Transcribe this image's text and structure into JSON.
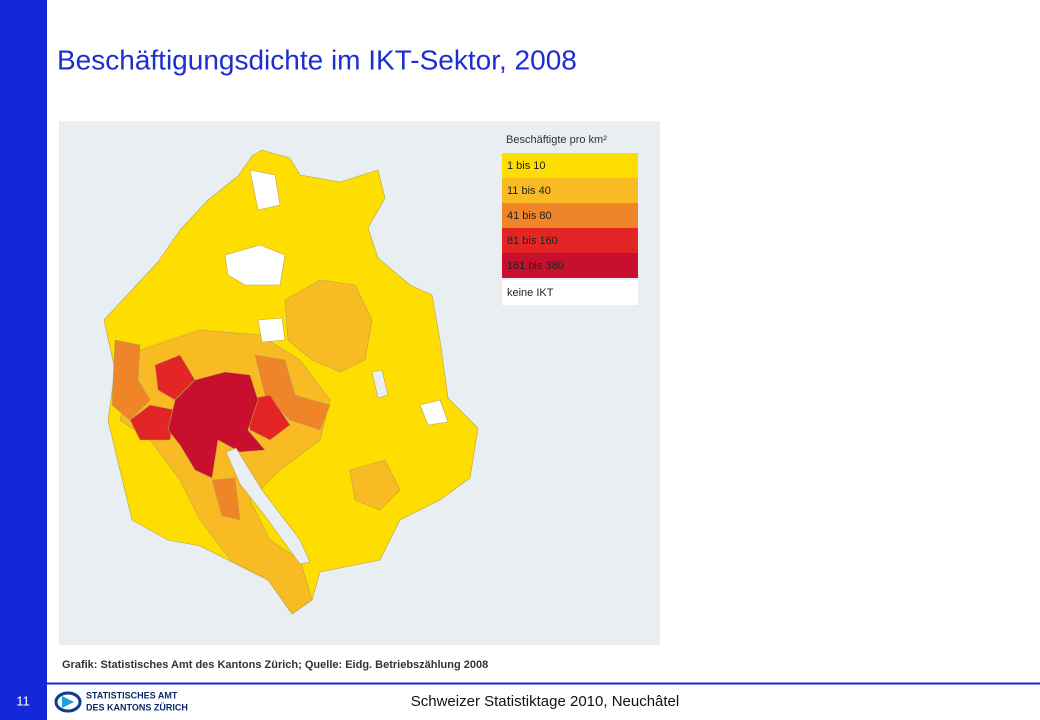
{
  "header": {
    "title": "Beschäftigungsdichte im IKT-Sektor, 2008"
  },
  "legend": {
    "title": "Beschäftigte pro km²",
    "items": [
      {
        "label": "1 bis 10",
        "color": "#fede00"
      },
      {
        "label": "11 bis 40",
        "color": "#f9bb23"
      },
      {
        "label": "41 bis 80",
        "color": "#f08428"
      },
      {
        "label": "81 bis 160",
        "color": "#e42525"
      },
      {
        "label": "161 bis 380",
        "color": "#c8102e"
      },
      {
        "label": "keine IKT",
        "color": "#ffffff"
      }
    ]
  },
  "source": "Grafik: Statistisches Amt des Kantons Zürich; Quelle: Eidg. Betriebszählung 2008",
  "footer": {
    "page": "11",
    "logo_line1": "STATISTISCHES AMT",
    "logo_line2": "DES KANTONS ZÜRICH",
    "text": "Schweizer Statistiktage 2010, Neuchâtel"
  }
}
